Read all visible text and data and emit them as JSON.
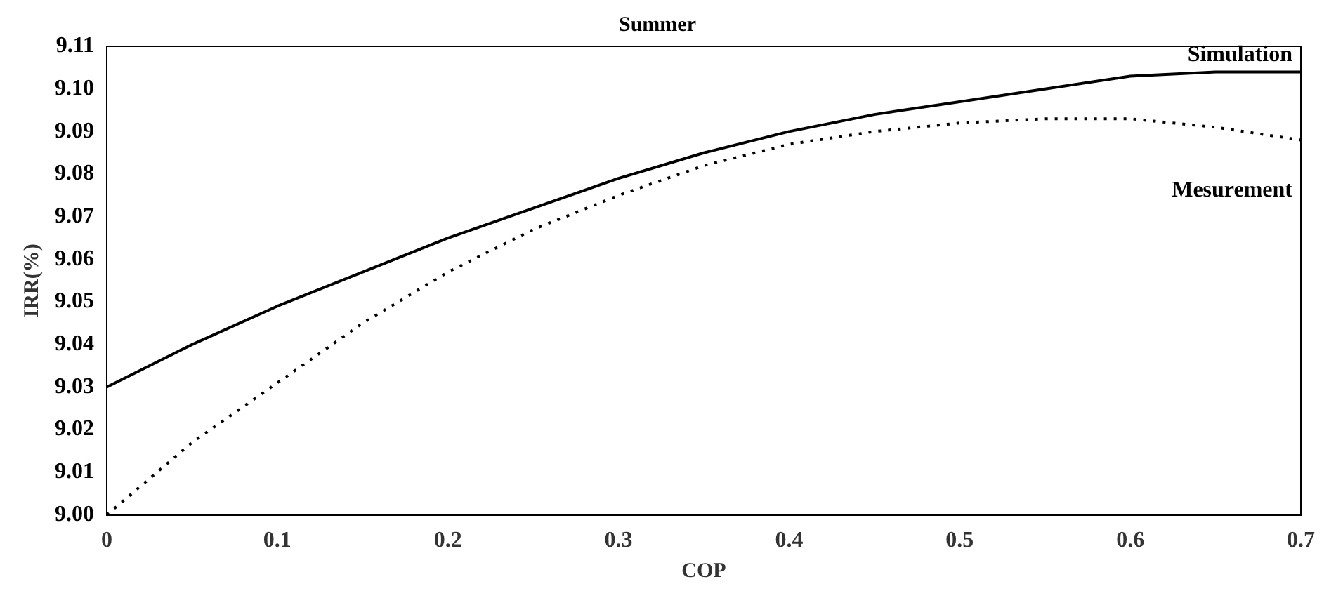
{
  "chart_data": {
    "type": "line",
    "title": "Summer",
    "xlabel": "COP",
    "ylabel": "IRR(%)",
    "x": [
      0,
      0.05,
      0.1,
      0.15,
      0.2,
      0.25,
      0.3,
      0.35,
      0.4,
      0.45,
      0.5,
      0.55,
      0.6,
      0.65,
      0.7
    ],
    "series": [
      {
        "name": "Simulation",
        "color": "#000000",
        "line_style": "solid",
        "values": [
          9.03,
          9.04,
          9.049,
          9.057,
          9.065,
          9.072,
          9.079,
          9.085,
          9.09,
          9.094,
          9.097,
          9.1,
          9.103,
          9.104,
          9.104
        ]
      },
      {
        "name": "Mesurement",
        "color": "#000000",
        "line_style": "dotted",
        "values": [
          9.0,
          9.017,
          9.031,
          9.045,
          9.057,
          9.067,
          9.075,
          9.082,
          9.087,
          9.09,
          9.092,
          9.093,
          9.093,
          9.091,
          9.088
        ]
      }
    ],
    "xlim": [
      0,
      0.7
    ],
    "xticks": [
      0,
      0.1,
      0.2,
      0.3,
      0.4,
      0.5,
      0.6,
      0.7
    ],
    "ylim": [
      9.0,
      9.11
    ],
    "yticks": [
      {
        "value": 9.0,
        "label": "9.00"
      },
      9.01,
      9.02,
      9.03,
      9.04,
      9.05,
      9.06,
      9.07,
      9.08,
      9.09,
      {
        "value": 9.1,
        "label": "9.10"
      },
      9.11
    ],
    "grid": false,
    "legend": false,
    "marker": "none"
  }
}
